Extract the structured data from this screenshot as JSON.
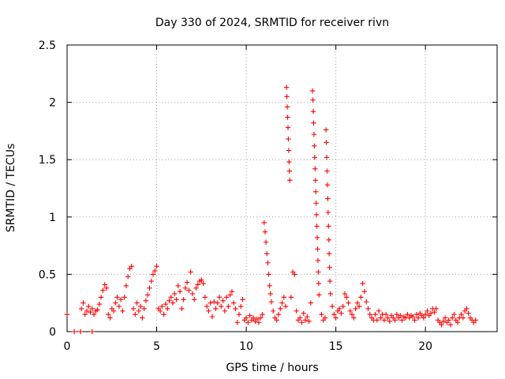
{
  "chart_data": {
    "type": "scatter",
    "title": "Day 330 of 2024, SRMTID for receiver rivn",
    "xlabel": "GPS time / hours",
    "ylabel": "SRMTID / TECUs",
    "xlim": [
      0,
      24
    ],
    "ylim": [
      0,
      2.5
    ],
    "grid": true,
    "marker": "plus",
    "color": "#ff0000",
    "x_ticks": [
      {
        "value": 0,
        "label": "0"
      },
      {
        "value": 5,
        "label": "5"
      },
      {
        "value": 10,
        "label": "10"
      },
      {
        "value": 15,
        "label": "15"
      },
      {
        "value": 20,
        "label": "20"
      }
    ],
    "y_ticks": [
      {
        "value": 0,
        "label": "0"
      },
      {
        "value": 0.5,
        "label": "0.5"
      },
      {
        "value": 1,
        "label": "1"
      },
      {
        "value": 1.5,
        "label": "1.5"
      },
      {
        "value": 2,
        "label": "2"
      },
      {
        "value": 2.5,
        "label": "2.5"
      }
    ],
    "series": [
      {
        "name": "SRMTID",
        "points": [
          [
            0.0,
            0.15
          ],
          [
            0.4,
            0.0
          ],
          [
            0.75,
            0.0
          ],
          [
            1.4,
            0.0
          ],
          [
            0.8,
            0.2
          ],
          [
            0.9,
            0.25
          ],
          [
            1.0,
            0.15
          ],
          [
            1.1,
            0.18
          ],
          [
            1.2,
            0.22
          ],
          [
            1.3,
            0.17
          ],
          [
            1.4,
            0.2
          ],
          [
            1.5,
            0.15
          ],
          [
            1.6,
            0.18
          ],
          [
            1.7,
            0.19
          ],
          [
            1.8,
            0.24
          ],
          [
            1.9,
            0.3
          ],
          [
            2.0,
            0.36
          ],
          [
            2.1,
            0.41
          ],
          [
            2.2,
            0.38
          ],
          [
            2.3,
            0.15
          ],
          [
            2.4,
            0.12
          ],
          [
            2.5,
            0.2
          ],
          [
            2.6,
            0.18
          ],
          [
            2.7,
            0.25
          ],
          [
            2.8,
            0.3
          ],
          [
            2.9,
            0.22
          ],
          [
            3.0,
            0.28
          ],
          [
            3.1,
            0.18
          ],
          [
            3.2,
            0.3
          ],
          [
            3.3,
            0.4
          ],
          [
            3.4,
            0.48
          ],
          [
            3.5,
            0.55
          ],
          [
            3.6,
            0.57
          ],
          [
            3.7,
            0.2
          ],
          [
            3.8,
            0.15
          ],
          [
            3.9,
            0.25
          ],
          [
            4.0,
            0.18
          ],
          [
            4.1,
            0.22
          ],
          [
            4.2,
            0.12
          ],
          [
            4.3,
            0.2
          ],
          [
            4.4,
            0.27
          ],
          [
            4.5,
            0.32
          ],
          [
            4.6,
            0.38
          ],
          [
            4.7,
            0.44
          ],
          [
            4.8,
            0.5
          ],
          [
            4.9,
            0.53
          ],
          [
            5.0,
            0.57
          ],
          [
            5.1,
            0.2
          ],
          [
            5.2,
            0.18
          ],
          [
            5.3,
            0.22
          ],
          [
            5.4,
            0.15
          ],
          [
            5.5,
            0.24
          ],
          [
            5.6,
            0.2
          ],
          [
            5.7,
            0.27
          ],
          [
            5.8,
            0.3
          ],
          [
            5.9,
            0.25
          ],
          [
            6.0,
            0.33
          ],
          [
            6.1,
            0.28
          ],
          [
            6.2,
            0.4
          ],
          [
            6.3,
            0.35
          ],
          [
            6.4,
            0.2
          ],
          [
            6.5,
            0.28
          ],
          [
            6.6,
            0.38
          ],
          [
            6.7,
            0.43
          ],
          [
            6.8,
            0.36
          ],
          [
            6.9,
            0.52
          ],
          [
            7.0,
            0.33
          ],
          [
            7.1,
            0.28
          ],
          [
            7.2,
            0.38
          ],
          [
            7.3,
            0.41
          ],
          [
            7.4,
            0.44
          ],
          [
            7.5,
            0.45
          ],
          [
            7.6,
            0.42
          ],
          [
            7.7,
            0.3
          ],
          [
            7.8,
            0.22
          ],
          [
            7.9,
            0.18
          ],
          [
            8.0,
            0.25
          ],
          [
            8.1,
            0.13
          ],
          [
            8.2,
            0.26
          ],
          [
            8.3,
            0.2
          ],
          [
            8.4,
            0.25
          ],
          [
            8.5,
            0.3
          ],
          [
            8.6,
            0.22
          ],
          [
            8.7,
            0.27
          ],
          [
            8.8,
            0.18
          ],
          [
            8.9,
            0.3
          ],
          [
            9.0,
            0.22
          ],
          [
            9.1,
            0.32
          ],
          [
            9.2,
            0.35
          ],
          [
            9.3,
            0.25
          ],
          [
            9.4,
            0.2
          ],
          [
            9.5,
            0.08
          ],
          [
            9.6,
            0.15
          ],
          [
            9.7,
            0.22
          ],
          [
            9.8,
            0.28
          ],
          [
            9.9,
            0.1
          ],
          [
            10.0,
            0.12
          ],
          [
            10.1,
            0.08
          ],
          [
            10.2,
            0.14
          ],
          [
            10.3,
            0.1
          ],
          [
            10.4,
            0.12
          ],
          [
            10.5,
            0.09
          ],
          [
            10.6,
            0.11
          ],
          [
            10.7,
            0.08
          ],
          [
            10.8,
            0.12
          ],
          [
            10.9,
            0.15
          ],
          [
            11.0,
            0.95
          ],
          [
            11.05,
            0.87
          ],
          [
            11.1,
            0.78
          ],
          [
            11.15,
            0.68
          ],
          [
            11.2,
            0.6
          ],
          [
            11.25,
            0.5
          ],
          [
            11.3,
            0.4
          ],
          [
            11.35,
            0.33
          ],
          [
            11.4,
            0.26
          ],
          [
            11.5,
            0.18
          ],
          [
            11.6,
            0.12
          ],
          [
            11.7,
            0.1
          ],
          [
            11.8,
            0.15
          ],
          [
            11.9,
            0.2
          ],
          [
            12.0,
            0.25
          ],
          [
            12.1,
            0.3
          ],
          [
            12.2,
            0.22
          ],
          [
            12.25,
            2.13
          ],
          [
            12.27,
            2.05
          ],
          [
            12.29,
            1.96
          ],
          [
            12.31,
            1.87
          ],
          [
            12.33,
            1.78
          ],
          [
            12.35,
            1.68
          ],
          [
            12.37,
            1.58
          ],
          [
            12.39,
            1.48
          ],
          [
            12.41,
            1.4
          ],
          [
            12.43,
            1.32
          ],
          [
            12.5,
            0.3
          ],
          [
            12.6,
            0.52
          ],
          [
            12.7,
            0.5
          ],
          [
            12.8,
            0.18
          ],
          [
            12.9,
            0.1
          ],
          [
            13.0,
            0.12
          ],
          [
            13.1,
            0.08
          ],
          [
            13.2,
            0.16
          ],
          [
            13.3,
            0.1
          ],
          [
            13.4,
            0.13
          ],
          [
            13.5,
            0.09
          ],
          [
            13.6,
            0.25
          ],
          [
            13.7,
            2.1
          ],
          [
            13.72,
            2.02
          ],
          [
            13.74,
            1.92
          ],
          [
            13.76,
            1.82
          ],
          [
            13.78,
            1.72
          ],
          [
            13.8,
            1.62
          ],
          [
            13.82,
            1.52
          ],
          [
            13.84,
            1.42
          ],
          [
            13.86,
            1.32
          ],
          [
            13.88,
            1.22
          ],
          [
            13.9,
            1.12
          ],
          [
            13.92,
            1.02
          ],
          [
            13.94,
            0.92
          ],
          [
            13.96,
            0.82
          ],
          [
            13.98,
            0.72
          ],
          [
            14.0,
            0.62
          ],
          [
            14.02,
            0.52
          ],
          [
            14.04,
            0.42
          ],
          [
            14.06,
            0.32
          ],
          [
            14.2,
            0.15
          ],
          [
            14.3,
            0.1
          ],
          [
            14.4,
            0.12
          ],
          [
            14.45,
            1.76
          ],
          [
            14.47,
            1.65
          ],
          [
            14.49,
            1.52
          ],
          [
            14.51,
            1.4
          ],
          [
            14.53,
            1.28
          ],
          [
            14.55,
            1.16
          ],
          [
            14.57,
            1.04
          ],
          [
            14.59,
            0.92
          ],
          [
            14.61,
            0.8
          ],
          [
            14.63,
            0.68
          ],
          [
            14.65,
            0.56
          ],
          [
            14.67,
            0.44
          ],
          [
            14.7,
            0.33
          ],
          [
            14.8,
            0.22
          ],
          [
            14.9,
            0.15
          ],
          [
            15.0,
            0.12
          ],
          [
            15.1,
            0.18
          ],
          [
            15.2,
            0.2
          ],
          [
            15.3,
            0.16
          ],
          [
            15.4,
            0.22
          ],
          [
            15.5,
            0.33
          ],
          [
            15.6,
            0.3
          ],
          [
            15.7,
            0.25
          ],
          [
            15.8,
            0.18
          ],
          [
            15.9,
            0.15
          ],
          [
            16.0,
            0.12
          ],
          [
            16.1,
            0.2
          ],
          [
            16.2,
            0.25
          ],
          [
            16.3,
            0.22
          ],
          [
            16.4,
            0.3
          ],
          [
            16.5,
            0.42
          ],
          [
            16.6,
            0.35
          ],
          [
            16.7,
            0.26
          ],
          [
            16.8,
            0.2
          ],
          [
            16.9,
            0.15
          ],
          [
            17.0,
            0.12
          ],
          [
            17.1,
            0.1
          ],
          [
            17.2,
            0.15
          ],
          [
            17.3,
            0.1
          ],
          [
            17.4,
            0.18
          ],
          [
            17.5,
            0.12
          ],
          [
            17.6,
            0.15
          ],
          [
            17.7,
            0.1
          ],
          [
            17.8,
            0.15
          ],
          [
            17.9,
            0.12
          ],
          [
            18.0,
            0.09
          ],
          [
            18.1,
            0.14
          ],
          [
            18.2,
            0.12
          ],
          [
            18.3,
            0.1
          ],
          [
            18.4,
            0.15
          ],
          [
            18.5,
            0.12
          ],
          [
            18.6,
            0.14
          ],
          [
            18.7,
            0.1
          ],
          [
            18.8,
            0.13
          ],
          [
            18.9,
            0.12
          ],
          [
            19.0,
            0.15
          ],
          [
            19.1,
            0.12
          ],
          [
            19.2,
            0.14
          ],
          [
            19.3,
            0.13
          ],
          [
            19.4,
            0.1
          ],
          [
            19.5,
            0.15
          ],
          [
            19.6,
            0.12
          ],
          [
            19.7,
            0.16
          ],
          [
            19.8,
            0.14
          ],
          [
            19.9,
            0.12
          ],
          [
            20.0,
            0.15
          ],
          [
            20.1,
            0.18
          ],
          [
            20.2,
            0.14
          ],
          [
            20.3,
            0.16
          ],
          [
            20.4,
            0.2
          ],
          [
            20.5,
            0.17
          ],
          [
            20.6,
            0.2
          ],
          [
            20.7,
            0.1
          ],
          [
            20.8,
            0.08
          ],
          [
            20.9,
            0.06
          ],
          [
            21.0,
            0.09
          ],
          [
            21.1,
            0.12
          ],
          [
            21.2,
            0.08
          ],
          [
            21.3,
            0.1
          ],
          [
            21.4,
            0.06
          ],
          [
            21.5,
            0.12
          ],
          [
            21.6,
            0.15
          ],
          [
            21.7,
            0.1
          ],
          [
            21.8,
            0.08
          ],
          [
            21.9,
            0.12
          ],
          [
            22.0,
            0.15
          ],
          [
            22.1,
            0.12
          ],
          [
            22.2,
            0.18
          ],
          [
            22.3,
            0.2
          ],
          [
            22.4,
            0.16
          ],
          [
            22.5,
            0.12
          ],
          [
            22.6,
            0.1
          ],
          [
            22.7,
            0.08
          ],
          [
            22.8,
            0.1
          ]
        ]
      }
    ]
  }
}
